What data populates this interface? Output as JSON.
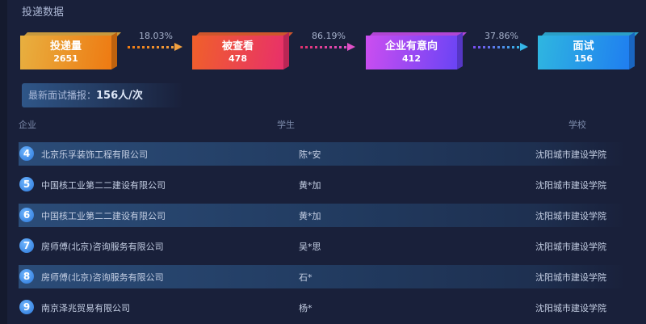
{
  "title": "投递数据",
  "funnel": [
    {
      "label": "投递量",
      "value": "2651",
      "colors": [
        "#e8b040",
        "#ee7a12"
      ]
    },
    {
      "label": "被查看",
      "value": "478",
      "colors": [
        "#f0602a",
        "#e8306a"
      ]
    },
    {
      "label": "企业有意向",
      "value": "412",
      "colors": [
        "#cc4ef0",
        "#6a44f5"
      ]
    },
    {
      "label": "面试",
      "value": "156",
      "colors": [
        "#2fb6e0",
        "#1f7ef0"
      ]
    }
  ],
  "rates": [
    {
      "value": "18.03%",
      "colors": [
        "#ee7a12",
        "#f0a040"
      ]
    },
    {
      "value": "86.19%",
      "colors": [
        "#e0306a",
        "#e050c8"
      ]
    },
    {
      "value": "37.86%",
      "colors": [
        "#7a4cf0",
        "#35b6e8"
      ]
    }
  ],
  "banner": {
    "label": "最新面试播报：",
    "count": "156",
    "unit": "人/次"
  },
  "table": {
    "headers": [
      "企业",
      "学生",
      "学校"
    ],
    "rows": [
      {
        "rank": "4",
        "company": "北京乐孚装饰工程有限公司",
        "student": "陈*安",
        "school": "沈阳城市建设学院"
      },
      {
        "rank": "5",
        "company": "中国核工业第二二建设有限公司",
        "student": "黄*加",
        "school": "沈阳城市建设学院"
      },
      {
        "rank": "6",
        "company": "中国核工业第二二建设有限公司",
        "student": "黄*加",
        "school": "沈阳城市建设学院"
      },
      {
        "rank": "7",
        "company": "房师傅(北京)咨询服务有限公司",
        "student": "吴*思",
        "school": "沈阳城市建设学院"
      },
      {
        "rank": "8",
        "company": "房师傅(北京)咨询服务有限公司",
        "student": "石*",
        "school": "沈阳城市建设学院"
      },
      {
        "rank": "9",
        "company": "南京泽兆贸易有限公司",
        "student": "杨*",
        "school": "沈阳城市建设学院"
      }
    ]
  }
}
